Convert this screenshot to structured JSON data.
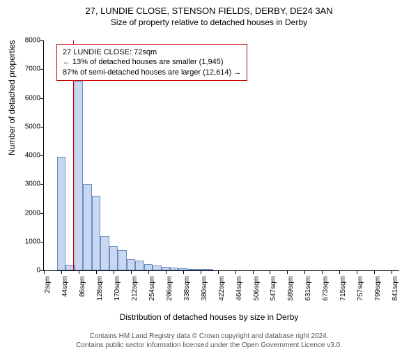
{
  "title_main": "27, LUNDIE CLOSE, STENSON FIELDS, DERBY, DE24 3AN",
  "title_sub": "Size of property relative to detached houses in Derby",
  "info_box": {
    "line1": "27 LUNDIE CLOSE: 72sqm",
    "line2": "← 13% of detached houses are smaller (1,945)",
    "line3": "87% of semi-detached houses are larger (12,614) →"
  },
  "y_label": "Number of detached properties",
  "x_label": "Distribution of detached houses by size in Derby",
  "footer_line1": "Contains HM Land Registry data © Crown copyright and database right 2024.",
  "footer_line2": "Contains public sector information licensed under the Open Government Licence v3.0.",
  "chart": {
    "type": "histogram",
    "ylim": [
      0,
      8000
    ],
    "ytick_step": 1000,
    "yticks": [
      0,
      1000,
      2000,
      3000,
      4000,
      5000,
      6000,
      7000,
      8000
    ],
    "xticks": [
      "2sqm",
      "44sqm",
      "86sqm",
      "128sqm",
      "170sqm",
      "212sqm",
      "254sqm",
      "296sqm",
      "338sqm",
      "380sqm",
      "422sqm",
      "464sqm",
      "506sqm",
      "547sqm",
      "589sqm",
      "631sqm",
      "673sqm",
      "715sqm",
      "757sqm",
      "799sqm",
      "841sqm"
    ],
    "bar_color": "#c9d8f0",
    "bar_border": "#6a8bc4",
    "background_color": "#ffffff",
    "marker_color": "#cc0000",
    "marker_x": 72,
    "xmin": 2,
    "xmax": 860,
    "bar_width_sqm": 21,
    "bars": [
      {
        "x": 44,
        "value": 3950
      },
      {
        "x": 65,
        "value": 200
      },
      {
        "x": 86,
        "value": 6600
      },
      {
        "x": 107,
        "value": 3000
      },
      {
        "x": 128,
        "value": 2600
      },
      {
        "x": 149,
        "value": 1200
      },
      {
        "x": 170,
        "value": 850
      },
      {
        "x": 191,
        "value": 700
      },
      {
        "x": 212,
        "value": 400
      },
      {
        "x": 233,
        "value": 350
      },
      {
        "x": 254,
        "value": 220
      },
      {
        "x": 275,
        "value": 170
      },
      {
        "x": 296,
        "value": 130
      },
      {
        "x": 317,
        "value": 100
      },
      {
        "x": 338,
        "value": 80
      },
      {
        "x": 359,
        "value": 60
      },
      {
        "x": 380,
        "value": 40
      },
      {
        "x": 401,
        "value": 30
      }
    ]
  }
}
